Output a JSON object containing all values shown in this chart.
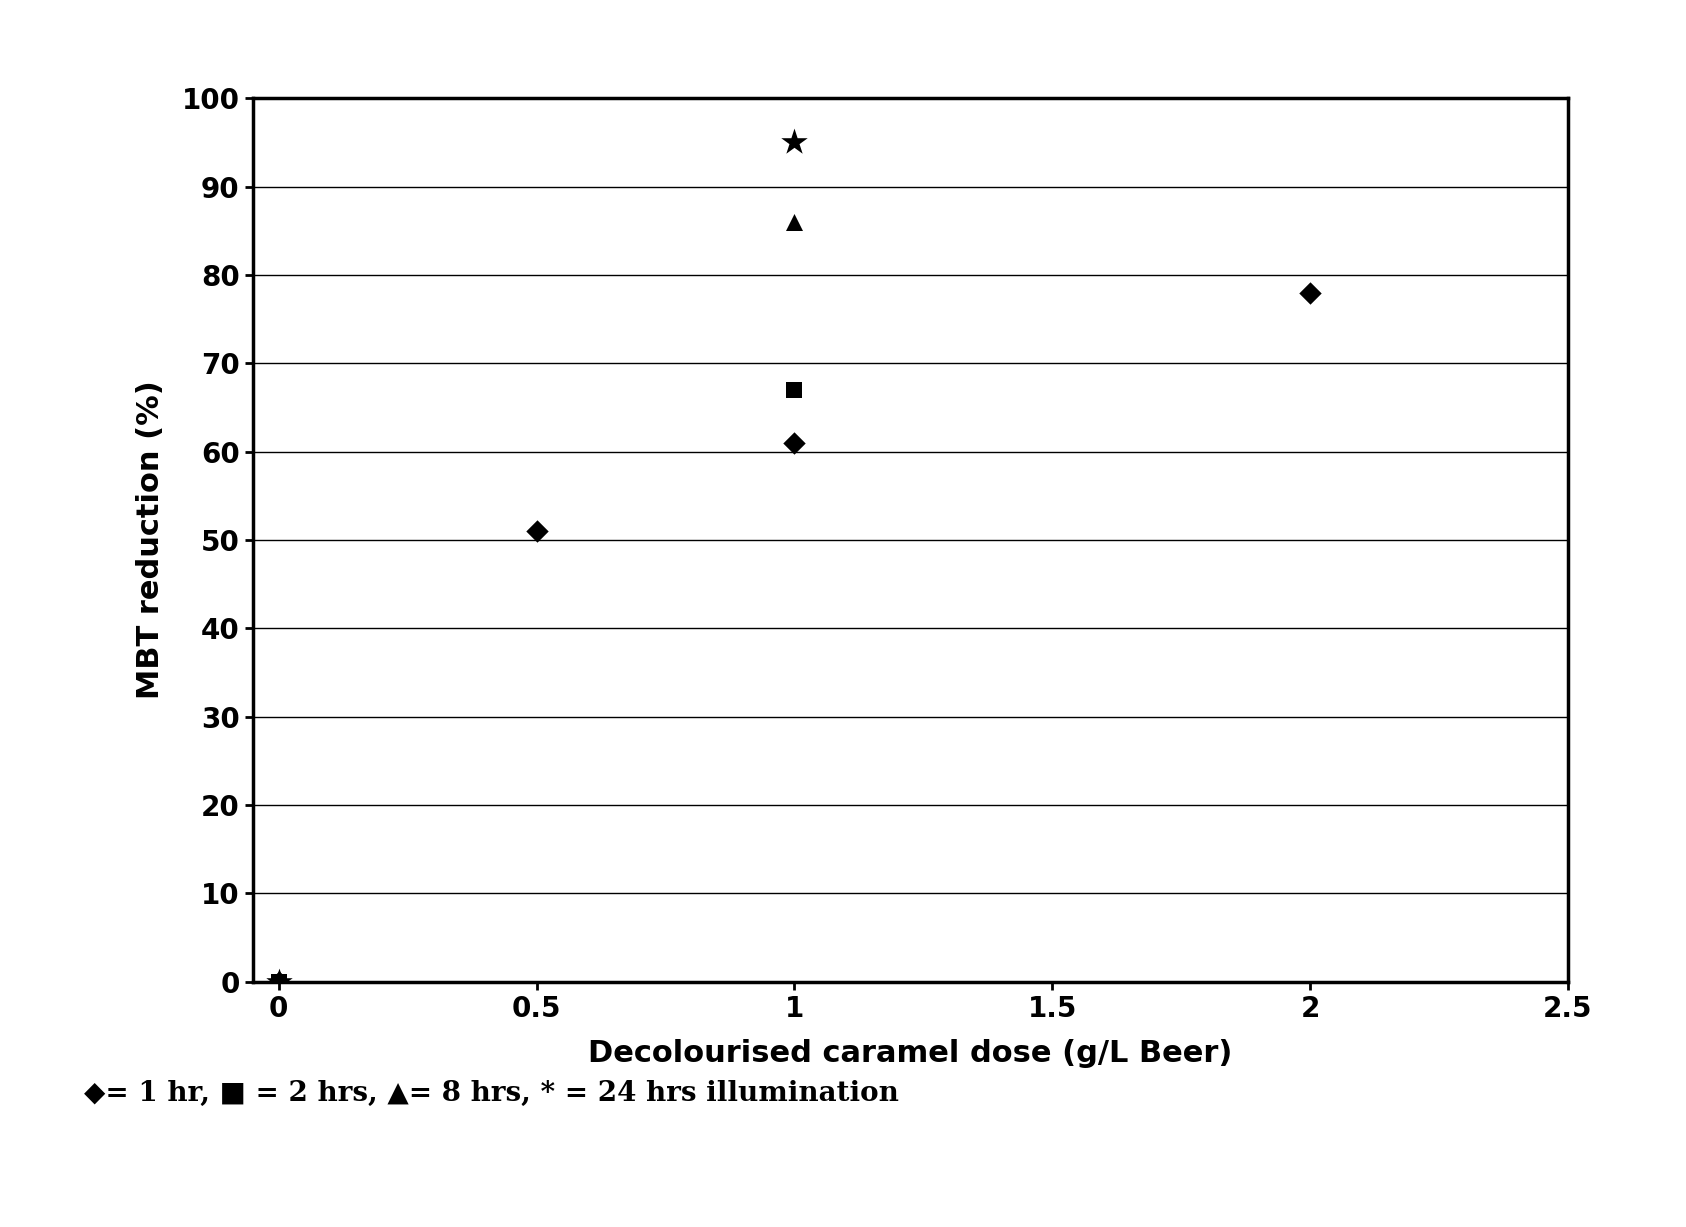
{
  "title": "",
  "xlabel": "Decolourised caramel dose (g/L Beer)",
  "ylabel": "MBT reduction (%)",
  "xlim": [
    -0.05,
    2.5
  ],
  "ylim": [
    0,
    100
  ],
  "xticks": [
    0,
    0.5,
    1.0,
    1.5,
    2.0,
    2.5
  ],
  "yticks": [
    0,
    10,
    20,
    30,
    40,
    50,
    60,
    70,
    80,
    90,
    100
  ],
  "series": [
    {
      "key": "1hr_diamond",
      "x": [
        0,
        0.5,
        1.0,
        2.0
      ],
      "y": [
        0,
        51,
        61,
        78
      ],
      "marker": "D",
      "color": "black",
      "size": 130
    },
    {
      "key": "2hr_square",
      "x": [
        0,
        1.0
      ],
      "y": [
        0,
        67
      ],
      "marker": "s",
      "color": "black",
      "size": 130
    },
    {
      "key": "8hr_triangle",
      "x": [
        0,
        1.0
      ],
      "y": [
        0,
        86
      ],
      "marker": "^",
      "color": "black",
      "size": 150
    },
    {
      "key": "24hr_star",
      "x": [
        0,
        1.0
      ],
      "y": [
        0,
        95
      ],
      "marker": "*",
      "color": "black",
      "size": 400
    }
  ],
  "legend_text": "◆= 1 hr, ■ = 2 hrs, ▲= 8 hrs, * = 24 hrs illumination",
  "background_color": "#ffffff",
  "font_color": "#000000",
  "label_fontsize": 22,
  "tick_fontsize": 20,
  "legend_fontsize": 20
}
